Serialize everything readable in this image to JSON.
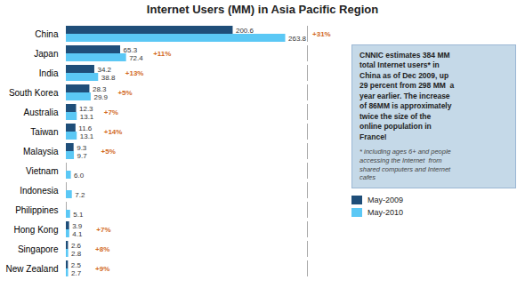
{
  "chart_data": {
    "type": "bar",
    "orientation": "horizontal",
    "title": "Internet Users (MM) in Asia Pacific Region",
    "categories": [
      "China",
      "Japan",
      "India",
      "South Korea",
      "Australia",
      "Taiwan",
      "Malaysia",
      "Vietnam",
      "Indonesia",
      "Philippines",
      "Hong Kong",
      "Singapore",
      "New Zealand"
    ],
    "series": [
      {
        "name": "May-2009",
        "color": "#1F4E79",
        "values": [
          200.6,
          65.3,
          34.2,
          28.3,
          12.3,
          11.6,
          9.3,
          null,
          null,
          null,
          3.9,
          2.6,
          2.5
        ],
        "value_labels": [
          "200.6",
          "65.3",
          "34.2",
          "28.3",
          "12.3",
          "11.6",
          "9.3",
          null,
          null,
          null,
          "3.9",
          "2.6",
          "2.5"
        ]
      },
      {
        "name": "May-2010",
        "color": "#5BC8F5",
        "values": [
          263.8,
          72.4,
          38.8,
          29.9,
          13.1,
          13.1,
          9.7,
          6.0,
          7.2,
          5.1,
          4.1,
          2.8,
          2.7
        ],
        "value_labels": [
          "263.8",
          "72.4",
          "38.8",
          "29.9",
          "13.1",
          "13.1",
          "9.7",
          "6.0",
          "7.2",
          "5.1",
          "4.1",
          "2.8",
          "2.7"
        ]
      }
    ],
    "pct_changes": {
      "color": "#D2691E",
      "values": [
        "+31%",
        "+11%",
        "+13%",
        "+5%",
        "+7%",
        "+14%",
        "+5%",
        null,
        null,
        null,
        "+7%",
        "+8%",
        "+9%"
      ]
    },
    "annotations": [
      "CNNIC estimates 384 MM\ntotal Internet users* in\nChina as of Dec 2009, up\n29 percent from 298 MM  a\nyear earlier. The increase\nof 86MM is approximately\ntwice the size of the\nonline population in\nFrance!",
      "* including ages 6+ and people\naccessing the Internet  from\nshared computers and Internet\ncafes"
    ],
    "xlim": [
      0,
      290
    ],
    "tick_labels": "y",
    "data_labels": true,
    "legend": "lower right"
  }
}
